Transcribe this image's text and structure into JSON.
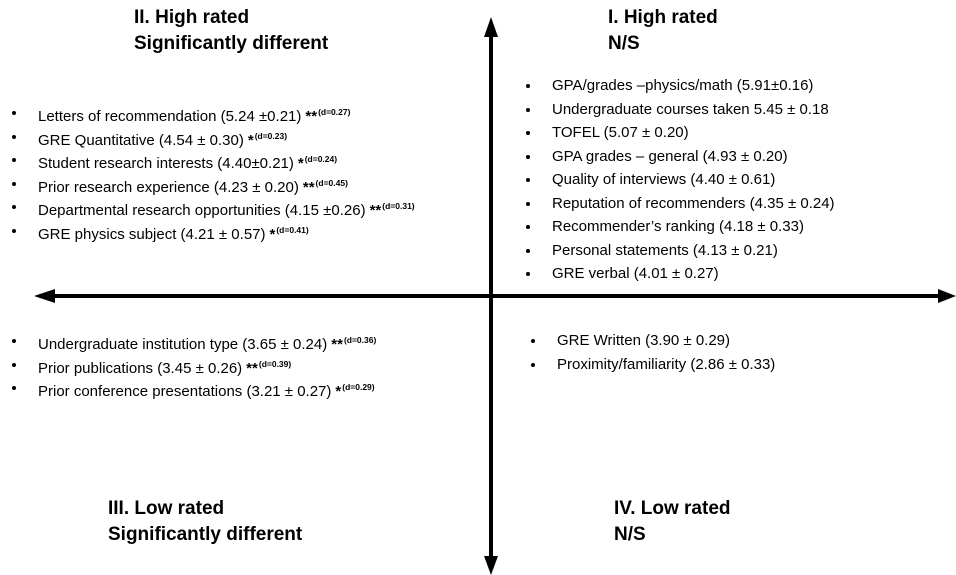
{
  "quadrants": {
    "q1": {
      "title": "I. High rated",
      "subtitle": "N/S",
      "items": [
        {
          "text": "GPA/grades –physics/math (5.91±0.16)"
        },
        {
          "text": "Undergraduate courses taken 5.45 ± 0.18"
        },
        {
          "text": "TOFEL (5.07 ± 0.20)"
        },
        {
          "text": "GPA grades – general (4.93 ± 0.20)"
        },
        {
          "text": "Quality of interviews (4.40 ± 0.61)"
        },
        {
          "text": "Reputation of recommenders (4.35 ± 0.24)"
        },
        {
          "text": "Recommender’s ranking (4.18 ± 0.33)"
        },
        {
          "text": "Personal statements (4.13 ± 0.21)"
        },
        {
          "text": "GRE verbal (4.01 ± 0.27)"
        }
      ]
    },
    "q2": {
      "title": "II. High rated",
      "subtitle": "Significantly different",
      "items": [
        {
          "text": "Letters of recommendation (5.24 ±0.21)",
          "stars": "**",
          "effect": "(d=0.27)"
        },
        {
          "text": "GRE Quantitative (4.54 ± 0.30)",
          "stars": "*",
          "effect": "(d=0.23)"
        },
        {
          "text": "Student research interests (4.40±0.21)",
          "stars": "*",
          "effect": "(d=0.24)"
        },
        {
          "text": "Prior research experience (4.23 ± 0.20)",
          "stars": "**",
          "effect": "(d=0.45)"
        },
        {
          "text": "Departmental research opportunities (4.15 ±0.26)",
          "stars": "**",
          "effect": "(d=0.31)"
        },
        {
          "text": "GRE physics subject (4.21 ± 0.57)",
          "stars": "*",
          "effect": "(d=0.41)"
        }
      ]
    },
    "q3": {
      "title": "III. Low rated",
      "subtitle": "Significantly different",
      "items": [
        {
          "text": "Undergraduate institution type (3.65 ± 0.24)",
          "stars": "**",
          "effect": "(d=0.36)"
        },
        {
          "text": "Prior publications (3.45 ± 0.26)",
          "stars": "**",
          "effect": "(d=0.39)"
        },
        {
          "text": "Prior conference presentations (3.21 ± 0.27)",
          "stars": "*",
          "effect": "(d=0.29)"
        }
      ]
    },
    "q4": {
      "title": "IV. Low rated",
      "subtitle": "N/S",
      "items": [
        {
          "text": "GRE Written (3.90 ± 0.29)"
        },
        {
          "text": "Proximity/familiarity (2.86 ± 0.33)"
        }
      ]
    }
  },
  "colors": {
    "axis": "#000000",
    "text": "#000000",
    "background": "#ffffff"
  }
}
